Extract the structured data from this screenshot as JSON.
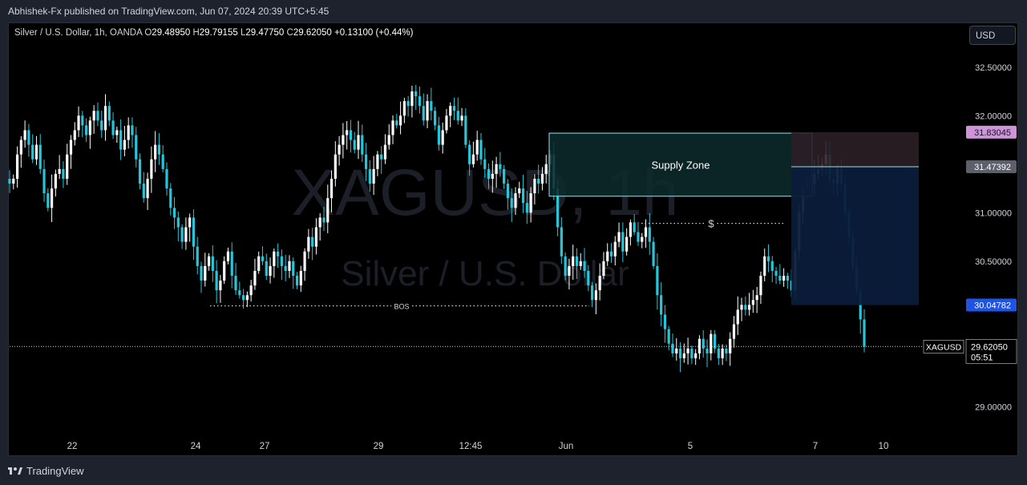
{
  "publisher_line": "Abhishek-Fx published on TradingView.com, Jun 07, 2024 20:39 UTC+5:45",
  "legend": {
    "title": "Silver / U.S. Dollar, 1h, OANDA",
    "o_label": "O",
    "o": "29.48950",
    "h_label": "H",
    "h": "29.79155",
    "l_label": "L",
    "l": "29.47750",
    "c_label": "C",
    "c": "29.62050",
    "change": "+0.13100 (+0.44%)"
  },
  "currency_button": "USD",
  "watermark": {
    "symbol": "XAGUSD, 1h",
    "name": "Silver / U.S. Dollar"
  },
  "footer_brand": "TradingView",
  "colors": {
    "up": "#ffffff",
    "down": "#26c6da",
    "supply_zone_fill": "#0d2a2d",
    "supply_zone_border": "#9edfe8",
    "stop_zone_fill": "#2a1f26",
    "target_zone_fill": "#0b1c3a",
    "target_label_bg": "#1e53e5",
    "stop_label_bg": "#ce93d8",
    "entry_label_bg": "#5d606b",
    "red_highlight": "#3a0d12",
    "blue_highlight": "#0b1a3a",
    "green_highlight": "#0b2a1e"
  },
  "chart_data": {
    "type": "candlestick",
    "symbol": "XAGUSD",
    "interval": "1h",
    "ylim": [
      28.78,
      32.68
    ],
    "y_ticks": [
      "32.50000",
      "32.00000",
      "31.00000",
      "30.50000",
      "29.00000"
    ],
    "x_ticks": [
      "22",
      "24",
      "27",
      "29",
      "12:45",
      "Jun",
      "5",
      "7",
      "10"
    ],
    "price_tags": {
      "stop": "31.83045",
      "entry": "31.47392",
      "target": "30.04782",
      "last_price": "29.62050",
      "countdown": "05:51",
      "last_symbol": "XAGUSD"
    },
    "annotations": {
      "supply_zone": {
        "label": "Supply Zone",
        "top": 31.82,
        "bottom": 31.17
      },
      "bos": {
        "label": "BOS",
        "price": 30.04
      },
      "liquidity": {
        "label": "$",
        "price": 30.89
      }
    },
    "candles_close": [
      31.3,
      31.35,
      31.6,
      31.75,
      31.85,
      31.7,
      31.55,
      31.7,
      31.45,
      31.2,
      31.05,
      31.25,
      31.4,
      31.45,
      31.35,
      31.6,
      31.75,
      31.85,
      32.0,
      31.9,
      31.8,
      31.95,
      32.05,
      31.95,
      31.85,
      32.1,
      31.95,
      31.8,
      31.85,
      31.65,
      31.75,
      31.9,
      31.8,
      31.55,
      31.3,
      31.15,
      31.35,
      31.55,
      31.7,
      31.6,
      31.45,
      31.25,
      31.05,
      30.95,
      30.85,
      30.7,
      30.85,
      30.95,
      30.65,
      30.45,
      30.3,
      30.45,
      30.55,
      30.4,
      30.2,
      30.3,
      30.5,
      30.6,
      30.35,
      30.2,
      30.15,
      30.1,
      30.15,
      30.25,
      30.4,
      30.55,
      30.5,
      30.35,
      30.45,
      30.6,
      30.55,
      30.45,
      30.4,
      30.5,
      30.35,
      30.25,
      30.4,
      30.6,
      30.75,
      30.65,
      30.85,
      30.95,
      30.9,
      31.15,
      31.35,
      31.6,
      31.7,
      31.8,
      31.85,
      31.75,
      31.65,
      31.8,
      31.6,
      31.45,
      31.3,
      31.45,
      31.6,
      31.55,
      31.7,
      31.8,
      31.95,
      31.9,
      32.0,
      32.15,
      32.1,
      32.25,
      32.2,
      32.1,
      31.95,
      32.15,
      32.05,
      31.9,
      31.7,
      31.85,
      32.0,
      32.1,
      32.05,
      31.95,
      32.0,
      31.7,
      31.5,
      31.6,
      31.75,
      31.55,
      31.45,
      31.35,
      31.4,
      31.5,
      31.45,
      31.3,
      31.15,
      31.05,
      31.2,
      31.25,
      31.1,
      31.0,
      31.2,
      31.35,
      31.3,
      31.4,
      31.5,
      31.6,
      31.25,
      30.85,
      30.55,
      30.35,
      30.45,
      30.55,
      30.45,
      30.5,
      30.4,
      30.25,
      30.1,
      30.2,
      30.35,
      30.5,
      30.6,
      30.55,
      30.7,
      30.8,
      30.6,
      30.75,
      30.9,
      30.8,
      30.7,
      30.75,
      30.85,
      30.7,
      30.45,
      30.15,
      29.95,
      29.8,
      29.65,
      29.55,
      29.6,
      29.5,
      29.55,
      29.6,
      29.5,
      29.55,
      29.7,
      29.6,
      29.55,
      29.75,
      29.6,
      29.5,
      29.6,
      29.55,
      29.7,
      29.85,
      30.0,
      30.05,
      30.0,
      30.05,
      30.1,
      30.15,
      30.35,
      30.55,
      30.5,
      30.4,
      30.35,
      30.3,
      30.35,
      30.3,
      30.2,
      30.6,
      31.0,
      31.25,
      31.35,
      31.3,
      31.4,
      31.45,
      31.5,
      31.6,
      31.35,
      31.3,
      31.45,
      31.3,
      31.0,
      30.75,
      30.45,
      30.2,
      29.9,
      29.62
    ]
  }
}
